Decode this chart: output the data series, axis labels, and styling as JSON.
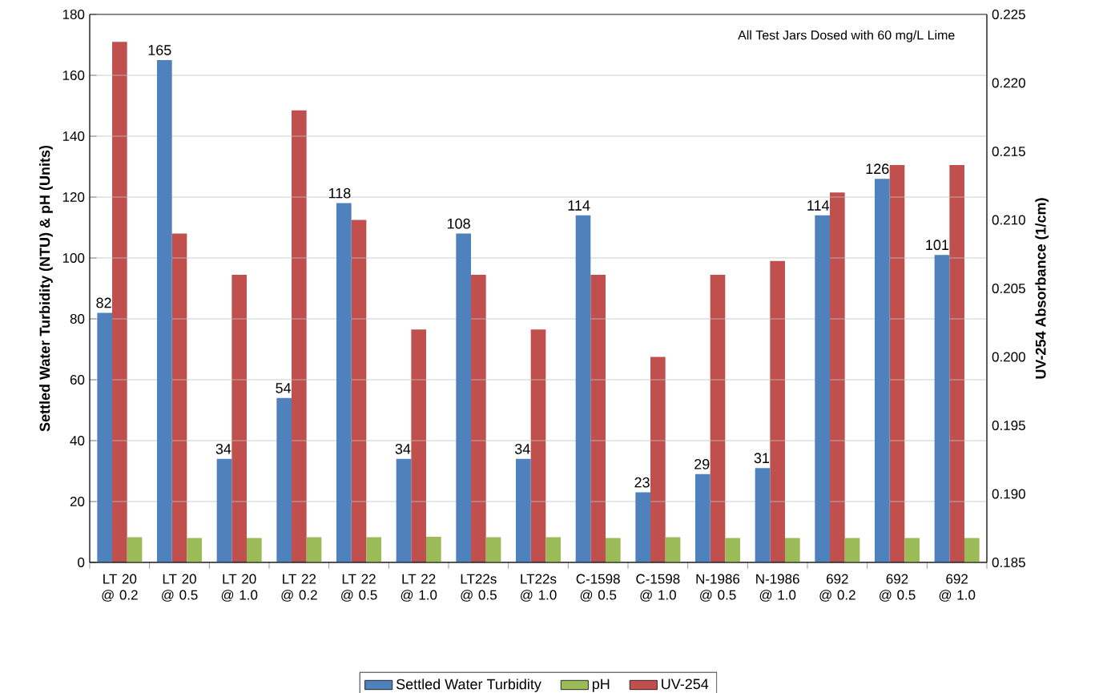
{
  "chart_data": {
    "type": "bar",
    "ylabel": "Settled Water Turbidity (NTU) & pH (Units)",
    "y2label": "UV-254 Absorbance  (1/cm)",
    "annotations": [
      "All Test Jars Dosed with 60 mg/L Lime"
    ],
    "categories": [
      "LT 20 @ 0.2",
      "LT 20 @ 0.5",
      "LT 20 @ 1.0",
      "LT 22 @ 0.2",
      "LT 22 @ 0.5",
      "LT 22 @ 1.0",
      "LT22s @ 0.5",
      "LT22s @ 1.0",
      "C-1598 @ 0.5",
      "C-1598 @ 1.0",
      "N-1986 @ 0.5",
      "N-1986 @ 1.0",
      "692 @ 0.2",
      "692 @ 0.5",
      "692 @ 1.0"
    ],
    "series": [
      {
        "name": "Settled Water Turbidity",
        "color": "#4f81bd",
        "values": [
          82,
          165,
          34,
          54,
          118,
          34,
          108,
          34,
          114,
          23,
          29,
          31,
          114,
          126,
          101
        ],
        "value_labels": [
          "82",
          "165",
          "34",
          "54",
          "118",
          "34",
          "108",
          "34",
          "114",
          "23",
          "29",
          "31",
          "114",
          "126",
          "101"
        ]
      },
      {
        "name": "pH",
        "color": "#9bbb59",
        "values": [
          8.3,
          8,
          8,
          8.3,
          8.3,
          8.4,
          8.3,
          8.3,
          8,
          8.3,
          8,
          8,
          8,
          8,
          8
        ]
      },
      {
        "name": "UV-254",
        "color": "#c0504d",
        "axis": "y2",
        "values": [
          0.223,
          0.209,
          0.206,
          0.218,
          0.21,
          0.202,
          0.206,
          0.202,
          0.206,
          0.2,
          0.206,
          0.207,
          0.212,
          0.214,
          0.214
        ]
      }
    ],
    "ylim": [
      0,
      180
    ],
    "yticks": [
      0,
      20,
      40,
      60,
      80,
      100,
      120,
      140,
      160,
      180
    ],
    "y2lim": [
      0.185,
      0.225
    ],
    "y2ticks": [
      {
        "value": 0.185,
        "label": "0.185"
      },
      {
        "value": 0.19,
        "label": "0.190"
      },
      {
        "value": 0.195,
        "label": "0.195"
      },
      {
        "value": 0.2,
        "label": "0.200"
      },
      {
        "value": 0.205,
        "label": "0.205"
      },
      {
        "value": 0.21,
        "label": "0.210"
      },
      {
        "value": 0.215,
        "label": "0.215"
      },
      {
        "value": 0.22,
        "label": "0.220"
      },
      {
        "value": 0.225,
        "label": "0.225"
      }
    ],
    "grid": "y",
    "legend": "bottom"
  }
}
